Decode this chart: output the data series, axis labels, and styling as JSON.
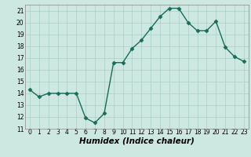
{
  "x": [
    0,
    1,
    2,
    3,
    4,
    5,
    6,
    7,
    8,
    9,
    10,
    11,
    12,
    13,
    14,
    15,
    16,
    17,
    18,
    19,
    20,
    21,
    22,
    23
  ],
  "y": [
    14.3,
    13.7,
    14.0,
    14.0,
    14.0,
    14.0,
    11.9,
    11.5,
    12.3,
    16.6,
    16.6,
    17.8,
    18.5,
    19.5,
    20.5,
    21.2,
    21.2,
    20.0,
    19.3,
    19.3,
    20.1,
    17.9,
    17.1,
    16.7
  ],
  "line_color": "#1a6b5a",
  "marker": "D",
  "marker_size": 2.5,
  "bg_color": "#cce8e0",
  "grid_color": "#aacfc8",
  "xlabel": "Humidex (Indice chaleur)",
  "ylim": [
    11,
    21.5
  ],
  "xlim": [
    -0.5,
    23.5
  ],
  "yticks": [
    11,
    12,
    13,
    14,
    15,
    16,
    17,
    18,
    19,
    20,
    21
  ],
  "xticks": [
    0,
    1,
    2,
    3,
    4,
    5,
    6,
    7,
    8,
    9,
    10,
    11,
    12,
    13,
    14,
    15,
    16,
    17,
    18,
    19,
    20,
    21,
    22,
    23
  ],
  "tick_fontsize": 5.5,
  "xlabel_fontsize": 7.5,
  "linewidth": 1.0
}
